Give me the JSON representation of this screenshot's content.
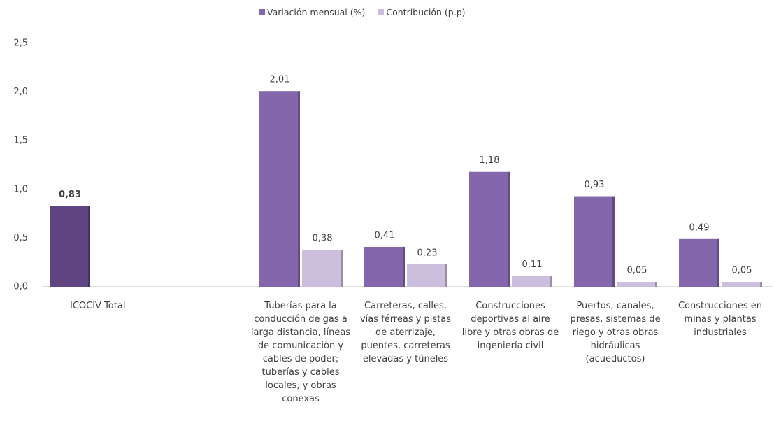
{
  "chart_data": {
    "type": "bar",
    "categories": [
      "ICOCIV Total",
      null,
      "Tuberías para la conducción de gas a larga distancia, líneas de comunicación y cables de poder; tuberías y cables locales, y obras conexas",
      "Carreteras, calles, vías férreas y pistas de aterrizaje, puentes, carreteras elevadas y túneles",
      "Construcciones deportivas al aire libre y otras obras de ingeniería civil",
      "Puertos, canales, presas, sistemas de riego y otras obras hidráulicas (acueductos)",
      "Construcciones  en minas y plantas industriales"
    ],
    "series": [
      {
        "name": "Variación mensual (%)",
        "color": "#8466ad",
        "colors": [
          "#5e4581",
          null,
          "#8466ad",
          "#8466ad",
          "#8466ad",
          "#8466ad",
          "#8466ad"
        ],
        "values": [
          0.83,
          null,
          2.01,
          0.41,
          1.18,
          0.93,
          0.49
        ],
        "value_labels": [
          "0,83",
          null,
          "2,01",
          "0,41",
          "1,18",
          "0,93",
          "0,49"
        ]
      },
      {
        "name": "Contribución (p.p)",
        "color": "#cbbfdd",
        "values": [
          null,
          null,
          0.38,
          0.23,
          0.11,
          0.05,
          0.05
        ],
        "value_labels": [
          null,
          null,
          "0,38",
          "0,23",
          "0,11",
          "0,05",
          "0,05"
        ]
      }
    ],
    "ylim": [
      0,
      2.5
    ],
    "yticks": [
      {
        "value": 0,
        "label": "0,0"
      },
      {
        "value": 0.5,
        "label": "0,5"
      },
      {
        "value": 1,
        "label": "1,0"
      },
      {
        "value": 1.5,
        "label": "1,5"
      },
      {
        "value": 2,
        "label": "2,0"
      },
      {
        "value": 2.5,
        "label": "2,5"
      }
    ],
    "grid": false
  }
}
